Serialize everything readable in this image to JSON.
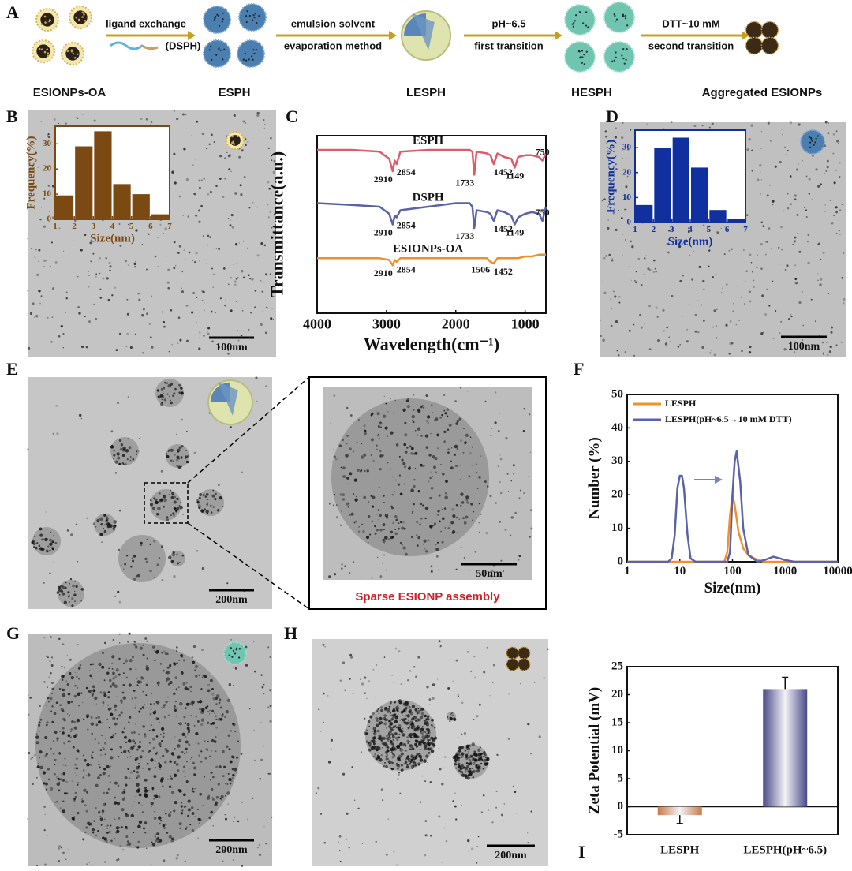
{
  "panel_labels": [
    "A",
    "B",
    "C",
    "D",
    "E",
    "F",
    "G",
    "H",
    "I"
  ],
  "schematic": {
    "steps": [
      {
        "line1": "ligand exchange",
        "line2": "(DSPH)"
      },
      {
        "line1": "emulsion solvent",
        "line2": "evaporation method"
      },
      {
        "line1": "pH~6.5",
        "line2": "first transition"
      },
      {
        "line1": "DTT~10 mM",
        "line2": "second transition"
      }
    ],
    "stages": [
      "ESIONPs-OA",
      "ESPH",
      "LESPH",
      "HESPH",
      "Aggregated ESIONPs"
    ]
  },
  "images": {
    "B": {
      "scale_bar": "100nm"
    },
    "D": {
      "scale_bar": "100nm"
    },
    "E": {
      "scale_bar": "200nm",
      "inset_scale_bar": "50nm",
      "inset_caption": "Sparse ESIONP assembly"
    },
    "G": {
      "scale_bar": "200nm"
    },
    "H": {
      "scale_bar": "200nm"
    }
  },
  "chart_data": [
    {
      "type": "histogram",
      "xlabel": "Size(nm)",
      "ylabel": "Frequency(%)",
      "bins": [
        1,
        2,
        3,
        4,
        5,
        6,
        7
      ],
      "values": [
        9.5,
        29,
        35,
        14,
        10,
        2
      ],
      "color": "#7b4a12",
      "xlim": [
        1,
        7
      ],
      "xticks": [
        1,
        2,
        3,
        4,
        5,
        6,
        7
      ],
      "ylim": [
        0,
        37
      ],
      "yticks": [
        0,
        10,
        20,
        30
      ]
    },
    {
      "type": "line",
      "xlabel": "Wavelength(cm⁻¹)",
      "ylabel": "Transmittance(a.u.)",
      "xlim": [
        4000,
        700
      ],
      "xticks": [
        4000,
        3000,
        2000,
        1000
      ],
      "ylim": [
        0,
        100
      ],
      "series": [
        {
          "name": "ESPH",
          "color": "#e05a6a",
          "x": [
            4000,
            3500,
            3100,
            2960,
            2910,
            2880,
            2854,
            2800,
            2400,
            2000,
            1800,
            1760,
            1733,
            1700,
            1550,
            1500,
            1452,
            1400,
            1300,
            1200,
            1149,
            1100,
            1000,
            900,
            800,
            750,
            700
          ],
          "values": [
            92,
            92,
            91,
            87,
            80,
            86,
            84,
            91,
            92,
            92,
            92,
            91,
            78,
            91,
            90,
            89,
            84,
            90,
            88,
            87,
            82,
            88,
            89,
            89,
            88,
            86,
            90
          ],
          "peaks": [
            2910,
            2854,
            1733,
            1452,
            1149,
            750
          ]
        },
        {
          "name": "DSPH",
          "color": "#5a62a8",
          "x": [
            4000,
            3500,
            3100,
            2960,
            2910,
            2880,
            2854,
            2800,
            2400,
            2000,
            1800,
            1760,
            1733,
            1700,
            1550,
            1500,
            1452,
            1400,
            1300,
            1200,
            1149,
            1100,
            1000,
            900,
            800,
            750,
            700
          ],
          "values": [
            62,
            61,
            60,
            56,
            50,
            55,
            54,
            58,
            60,
            62,
            62,
            60,
            48,
            58,
            57,
            56,
            52,
            58,
            57,
            55,
            50,
            54,
            56,
            57,
            56,
            52,
            60
          ],
          "peaks": [
            2910,
            2854,
            1733,
            1452,
            1149,
            750
          ]
        },
        {
          "name": "ESIONPs-OA",
          "color": "#f0902a",
          "x": [
            4000,
            3500,
            3100,
            2960,
            2910,
            2880,
            2854,
            2800,
            2400,
            2000,
            1800,
            1760,
            1733,
            1700,
            1550,
            1500,
            1452,
            1400,
            1300,
            1200,
            1149,
            1100,
            1000,
            900,
            800,
            750,
            700
          ],
          "values": [
            31,
            31,
            31,
            30,
            27,
            30,
            29,
            31,
            31,
            31,
            31,
            31,
            31,
            31,
            31,
            29,
            28,
            31,
            31,
            31,
            31,
            31,
            32,
            32,
            33,
            33,
            33
          ],
          "peaks": [
            2910,
            2854,
            1506,
            1452
          ]
        }
      ]
    },
    {
      "type": "histogram",
      "xlabel": "Size(nm)",
      "ylabel": "Frequency(%)",
      "bins": [
        1,
        2,
        3,
        4,
        5,
        6,
        7
      ],
      "values": [
        7,
        30,
        34,
        22,
        5,
        1.5
      ],
      "color": "#1030a0",
      "xlim": [
        1,
        7
      ],
      "xticks": [
        1,
        2,
        3,
        4,
        5,
        6,
        7
      ],
      "ylim": [
        0,
        37
      ],
      "yticks": [
        0,
        10,
        20,
        30
      ]
    },
    {
      "type": "line",
      "xlabel": "Size(nm)",
      "ylabel": "Number (%)",
      "log_x": true,
      "legend": "upper-left",
      "xlim": [
        1,
        10000
      ],
      "xticks": [
        1,
        10,
        100,
        1000,
        10000
      ],
      "ylim": [
        0,
        50
      ],
      "yticks": [
        0,
        10,
        20,
        30,
        40,
        50
      ],
      "series": [
        {
          "name": "LESPH",
          "color": "#f0902a",
          "x": [
            1,
            50,
            70,
            80,
            90,
            100,
            110,
            130,
            160,
            200,
            300,
            400,
            10000
          ],
          "values": [
            0,
            0,
            0,
            3,
            14,
            20,
            17,
            9,
            4,
            2,
            0.5,
            0,
            0
          ]
        },
        {
          "name": "LESPH(pH~6.5→10 mM DTT)",
          "color": "#5a62a8",
          "x": [
            1,
            6,
            7,
            8,
            9,
            10,
            11,
            12,
            14,
            16,
            20,
            50,
            80,
            90,
            100,
            110,
            120,
            140,
            160,
            200,
            300,
            400,
            600,
            800,
            1000,
            1500,
            10000
          ],
          "values": [
            0,
            0,
            1,
            8,
            22,
            25.7,
            25.7,
            22,
            8,
            1,
            0,
            0,
            0,
            3,
            20,
            30,
            33,
            24,
            10,
            2,
            0,
            0.5,
            1.5,
            1,
            0.5,
            0,
            0
          ]
        }
      ]
    },
    {
      "type": "bar",
      "ylabel": "Zeta Potential (mV)",
      "categories": [
        "LESPH",
        "LESPH(pH~6.5)"
      ],
      "values": [
        -1.5,
        21
      ],
      "errors": [
        1.5,
        2.1
      ],
      "colors": [
        "#c97a4a",
        "#4a4a8a"
      ],
      "ylim": [
        -5,
        25
      ],
      "yticks": [
        -5,
        0,
        5,
        10,
        15,
        20,
        25
      ]
    }
  ]
}
